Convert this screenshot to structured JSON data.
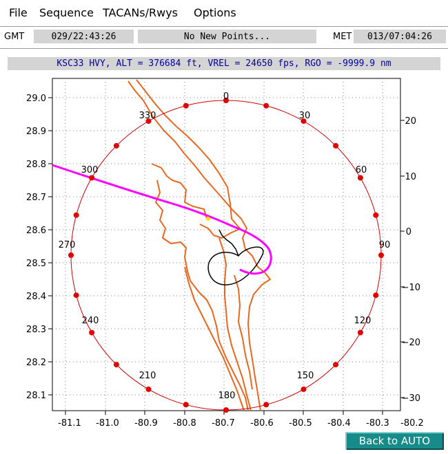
{
  "menu": {
    "file": "File",
    "sequence": "Sequence",
    "tacans": "TACANs/Rwys",
    "options": "Options"
  },
  "status_row": {
    "gmt_label": "GMT",
    "gmt_value": "029/22:43:26",
    "message": "No New Points...",
    "met_label": "MET",
    "met_value": "013/07:04:26"
  },
  "info_bar": "KSC33 HVY, ALT = 376684 ft, VREL = 24650 fps, RGO = -9999.9 nm",
  "plot": {
    "y_ticks": [
      "29.0",
      "28.9",
      "28.8",
      "28.7",
      "28.6",
      "28.5",
      "28.4",
      "28.3",
      "28.2",
      "28.1"
    ],
    "x_ticks": [
      "-81.1",
      "-81.0",
      "-80.9",
      "-80.8",
      "-80.7",
      "-80.6",
      "-80.5",
      "-80.4",
      "-80.3",
      "-80.2"
    ],
    "right_ticks": [
      "20",
      "10",
      "0",
      "−10",
      "−20",
      "−30"
    ],
    "bearing_labels": [
      "0",
      "30",
      "60",
      "90",
      "120",
      "150",
      "180",
      "210",
      "240",
      "270",
      "300",
      "330"
    ],
    "colors": {
      "range_ring": "#cc0000",
      "coastline": "#e8661e",
      "ground_track": "#ff00ff",
      "approach": "#000000",
      "grid": "#808080"
    }
  },
  "back_button": "Back to AUTO"
}
